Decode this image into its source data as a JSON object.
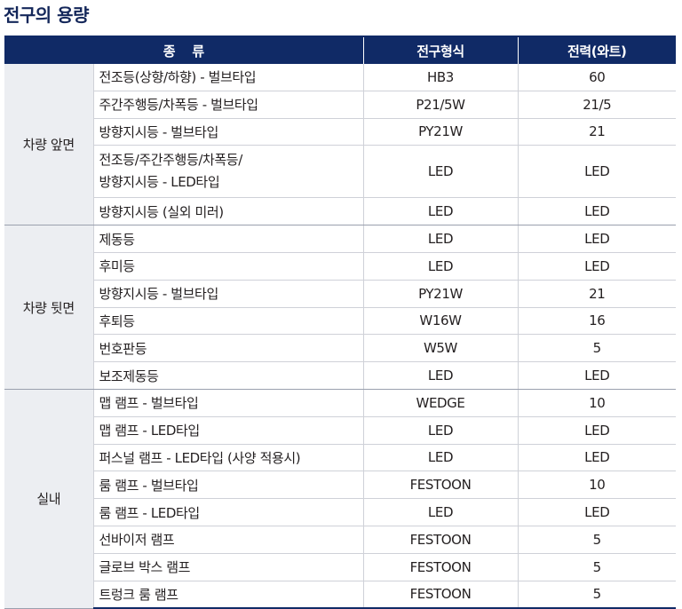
{
  "title": "전구의 용량",
  "headers": {
    "type": "종    류",
    "bulb_type": "전구형식",
    "wattage": "전력(와트)"
  },
  "groups": [
    {
      "label": "차량 앞면",
      "rows": [
        {
          "type": "전조등(상향/하향) - 벌브타입",
          "bulb": "HB3",
          "watt": "60"
        },
        {
          "type": "주간주행등/차폭등 - 벌브타입",
          "bulb": "P21/5W",
          "watt": "21/5"
        },
        {
          "type": "방향지시등 - 벌브타입",
          "bulb": "PY21W",
          "watt": "21"
        },
        {
          "type_line1": "전조등/주간주행등/차폭등/",
          "type_line2": "방향지시등 - LED타입",
          "bulb": "LED",
          "watt": "LED"
        },
        {
          "type": "방향지시등 (실외 미러)",
          "bulb": "LED",
          "watt": "LED"
        }
      ]
    },
    {
      "label": "차량 뒷면",
      "rows": [
        {
          "type": "제동등",
          "bulb": "LED",
          "watt": "LED"
        },
        {
          "type": "후미등",
          "bulb": "LED",
          "watt": "LED"
        },
        {
          "type": "방향지시등 - 벌브타입",
          "bulb": "PY21W",
          "watt": "21"
        },
        {
          "type": "후퇴등",
          "bulb": "W16W",
          "watt": "16"
        },
        {
          "type": "번호판등",
          "bulb": "W5W",
          "watt": "5"
        },
        {
          "type": "보조제동등",
          "bulb": "LED",
          "watt": "LED"
        }
      ]
    },
    {
      "label": "실내",
      "rows": [
        {
          "type": "맵 램프 - 벌브타입",
          "bulb": "WEDGE",
          "watt": "10"
        },
        {
          "type": "맵 램프 - LED타입",
          "bulb": "LED",
          "watt": "LED"
        },
        {
          "type": "퍼스널 램프 - LED타입 (사양 적용시)",
          "bulb": "LED",
          "watt": "LED"
        },
        {
          "type": "룸 램프 - 벌브타입",
          "bulb": "FESTOON",
          "watt": "10"
        },
        {
          "type": "룸 램프 - LED타입",
          "bulb": "LED",
          "watt": "LED"
        },
        {
          "type": "선바이저 램프",
          "bulb": "FESTOON",
          "watt": "5"
        },
        {
          "type": "글로브 박스 램프",
          "bulb": "FESTOON",
          "watt": "5"
        },
        {
          "type": "트렁크 룸 램프",
          "bulb": "FESTOON",
          "watt": "5"
        }
      ]
    }
  ]
}
